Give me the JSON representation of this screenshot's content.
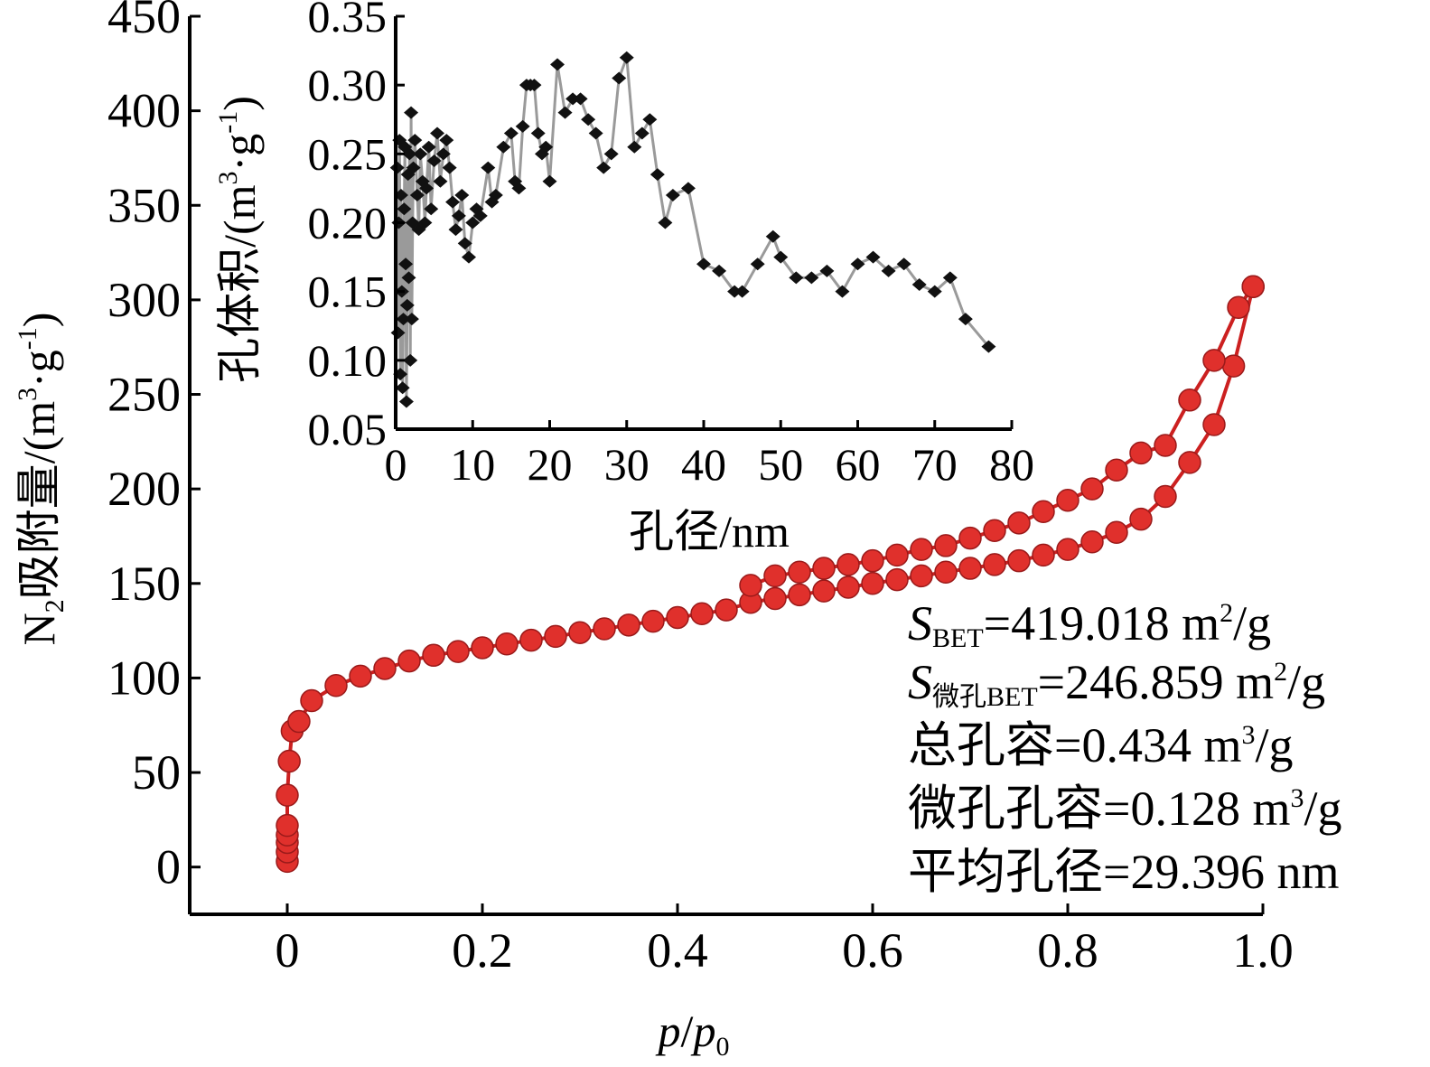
{
  "chart_data": [
    {
      "type": "line",
      "xlabel_parts": [
        "p",
        "/",
        "p",
        "0"
      ],
      "ylabel_parts": [
        "N",
        "2",
        "吸附量/(m",
        "3",
        "·g",
        "-1",
        ")"
      ],
      "xlim": [
        -0.1,
        1.0
      ],
      "ylim": [
        -25,
        450
      ],
      "xticks": [
        "0",
        "0.2",
        "0.4",
        "0.6",
        "0.8",
        "1.0"
      ],
      "yticks": [
        "0",
        "50",
        "100",
        "150",
        "200",
        "250",
        "300",
        "350",
        "400",
        "450"
      ],
      "colors": {
        "marker": "#e0302c",
        "line": "#cc2020",
        "marker_edge": "#9a1a1a"
      },
      "series": [
        {
          "branch": "adsorption",
          "x": [
            0.0,
            0.0,
            0.0,
            0.0,
            0.0,
            0.0,
            0.002,
            0.005,
            0.012,
            0.025,
            0.05,
            0.075,
            0.1,
            0.125,
            0.15,
            0.175,
            0.2,
            0.225,
            0.25,
            0.275,
            0.3,
            0.325,
            0.35,
            0.375,
            0.4,
            0.425,
            0.45,
            0.475,
            0.5,
            0.525,
            0.55,
            0.575,
            0.6,
            0.625,
            0.65,
            0.675,
            0.7,
            0.725,
            0.75,
            0.775,
            0.8,
            0.825,
            0.85,
            0.875,
            0.9,
            0.925,
            0.95,
            0.97,
            0.99
          ],
          "y": [
            3,
            8,
            13,
            17,
            22,
            38,
            56,
            72,
            77,
            88,
            96,
            101,
            105,
            109,
            112,
            114,
            116,
            118,
            120,
            122,
            124,
            126,
            128,
            130,
            132,
            134,
            136,
            140,
            142,
            144,
            146,
            148,
            150,
            152,
            154,
            156,
            158,
            160,
            162,
            165,
            168,
            172,
            177,
            184,
            196,
            214,
            234,
            265,
            307
          ]
        },
        {
          "branch": "desorption",
          "x": [
            0.99,
            0.975,
            0.95,
            0.925,
            0.9,
            0.875,
            0.85,
            0.825,
            0.8,
            0.775,
            0.75,
            0.725,
            0.7,
            0.675,
            0.65,
            0.625,
            0.6,
            0.575,
            0.55,
            0.525,
            0.5,
            0.475
          ],
          "y": [
            307,
            296,
            268,
            247,
            223,
            219,
            210,
            200,
            194,
            188,
            182,
            178,
            174,
            170,
            168,
            165,
            162,
            160,
            158,
            156,
            154,
            149
          ]
        }
      ]
    },
    {
      "type": "line",
      "inset": true,
      "xlabel": "孔径/nm",
      "ylabel_parts": [
        "孔体积/(m",
        "3",
        "·g",
        "-1",
        ")"
      ],
      "xlim": [
        0,
        80
      ],
      "ylim": [
        0.05,
        0.35
      ],
      "xticks": [
        "0",
        "10",
        "20",
        "30",
        "40",
        "50",
        "60",
        "70",
        "80"
      ],
      "yticks": [
        "0.05",
        "0.10",
        "0.15",
        "0.20",
        "0.25",
        "0.30",
        "0.35"
      ],
      "colors": {
        "marker": "#111111",
        "line": "#9a9a9a"
      },
      "series": [
        {
          "x": [
            0.2,
            0.3,
            0.4,
            0.5,
            0.6,
            0.7,
            0.8,
            0.9,
            1.0,
            1.1,
            1.2,
            1.3,
            1.4,
            1.5,
            1.6,
            1.7,
            1.8,
            1.9,
            2.0,
            2.1,
            2.2,
            2.3,
            2.5,
            2.8,
            3.0,
            3.2,
            3.5,
            3.8,
            4.0,
            4.3,
            4.6,
            5.0,
            5.4,
            5.8,
            6.2,
            6.6,
            7.0,
            7.4,
            7.8,
            8.2,
            8.6,
            9.0,
            9.5,
            10.0,
            10.5,
            11,
            12,
            12.5,
            13,
            14,
            15,
            15.5,
            16,
            16.5,
            17,
            17.5,
            18,
            18.5,
            19,
            19.5,
            20,
            21,
            22,
            23,
            24,
            25,
            26,
            27,
            28,
            29,
            30,
            31,
            32,
            33,
            34,
            35,
            36,
            38,
            40,
            42,
            44,
            45,
            47,
            49,
            50,
            52,
            54,
            56,
            58,
            60,
            62,
            64,
            66,
            68,
            70,
            72,
            74,
            77
          ],
          "y": [
            0.24,
            0.12,
            0.2,
            0.26,
            0.09,
            0.22,
            0.15,
            0.08,
            0.13,
            0.21,
            0.255,
            0.17,
            0.07,
            0.14,
            0.235,
            0.16,
            0.25,
            0.1,
            0.28,
            0.13,
            0.2,
            0.24,
            0.26,
            0.22,
            0.195,
            0.25,
            0.23,
            0.2,
            0.225,
            0.255,
            0.21,
            0.245,
            0.265,
            0.23,
            0.25,
            0.26,
            0.24,
            0.215,
            0.195,
            0.205,
            0.22,
            0.185,
            0.175,
            0.2,
            0.21,
            0.205,
            0.24,
            0.215,
            0.22,
            0.255,
            0.265,
            0.23,
            0.225,
            0.27,
            0.3,
            0.3,
            0.3,
            0.265,
            0.25,
            0.255,
            0.23,
            0.315,
            0.28,
            0.29,
            0.29,
            0.275,
            0.265,
            0.24,
            0.25,
            0.305,
            0.32,
            0.255,
            0.265,
            0.275,
            0.235,
            0.2,
            0.22,
            0.225,
            0.17,
            0.165,
            0.15,
            0.15,
            0.17,
            0.19,
            0.175,
            0.16,
            0.16,
            0.165,
            0.15,
            0.17,
            0.175,
            0.165,
            0.17,
            0.155,
            0.15,
            0.16,
            0.13,
            0.11
          ]
        }
      ]
    }
  ],
  "stats": {
    "sbet_symbol": "S",
    "sbet_sub": "BET",
    "sbet_value": "=419.018 m",
    "sbet_sup": "2",
    "sbet_unit": "/g",
    "smicro_symbol": "S",
    "smicro_sub": "微孔BET",
    "smicro_value": "=246.859 m",
    "smicro_sup": "2",
    "smicro_unit": "/g",
    "total_pore_label": "总孔容=0.434 m",
    "total_pore_sup": "3",
    "total_pore_unit": "/g",
    "micro_pore_label": "微孔孔容=0.128 m",
    "micro_pore_sup": "3",
    "micro_pore_unit": "/g",
    "avg_pore_label": "平均孔径=29.396 nm"
  }
}
